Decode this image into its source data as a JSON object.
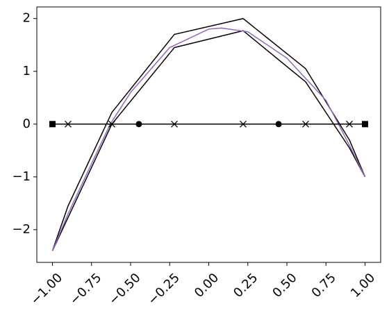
{
  "chart_data": {
    "type": "line",
    "xlim": [
      -1.1,
      1.1
    ],
    "ylim": [
      -2.62,
      2.22
    ],
    "xticks": [
      {
        "value": -1,
        "label": "−1.00"
      },
      {
        "value": -0.75,
        "label": "−0.75"
      },
      {
        "value": -0.5,
        "label": "−0.50"
      },
      {
        "value": -0.25,
        "label": "−0.25"
      },
      {
        "value": 0,
        "label": "0.00"
      },
      {
        "value": 0.25,
        "label": "0.25"
      },
      {
        "value": 0.5,
        "label": "0.50"
      },
      {
        "value": 0.75,
        "label": "0.75"
      },
      {
        "value": 1,
        "label": "1.00"
      }
    ],
    "yticks": [
      {
        "value": -2,
        "label": "−2"
      },
      {
        "value": -1,
        "label": "−1"
      },
      0,
      1,
      2
    ],
    "series": [
      {
        "color": "#000000",
        "linestyle": "solid",
        "marker": "none",
        "x": [
          -1,
          -0.9,
          -0.62,
          -0.22,
          0.22,
          0.62,
          0.9,
          1
        ],
        "values": [
          -2.4,
          -1.55,
          0.22,
          1.7,
          2.0,
          1.05,
          -0.3,
          -1
        ]
      },
      {
        "color": "#000000",
        "linestyle": "solid",
        "marker": "none",
        "x": [
          -1,
          -0.62,
          -0.22,
          0.22,
          0.62,
          0.9,
          1
        ],
        "values": [
          -2.4,
          0.0,
          1.45,
          1.77,
          0.8,
          -0.45,
          -1
        ]
      },
      {
        "color": "#9467bd",
        "linestyle": "solid",
        "marker": "none",
        "x": [
          -1,
          -0.9,
          -0.75,
          -0.63,
          -0.5,
          -0.25,
          0,
          0.08,
          0.25,
          0.5,
          0.75,
          0.83,
          0.9,
          1
        ],
        "values": [
          -2.4,
          -1.7,
          -0.75,
          0,
          0.6,
          1.45,
          1.8,
          1.82,
          1.75,
          1.25,
          0.45,
          0,
          -0.4,
          -1
        ]
      },
      {
        "color": "#000000",
        "linestyle": "solid",
        "marker": "none",
        "x": [
          -1,
          1
        ],
        "values": [
          0,
          0
        ]
      },
      {
        "color": "#000000",
        "linestyle": "none",
        "marker": "x",
        "x": [
          -0.9,
          -0.62,
          -0.22,
          0.22,
          0.62,
          0.9
        ],
        "values": [
          0,
          0,
          0,
          0,
          0,
          0
        ]
      },
      {
        "color": "#000000",
        "linestyle": "none",
        "marker": "o",
        "x": [
          -0.447,
          0.447
        ],
        "values": [
          0,
          0
        ]
      },
      {
        "color": "#000000",
        "linestyle": "none",
        "marker": "s",
        "x": [
          -1,
          1
        ],
        "values": [
          0,
          0
        ]
      }
    ]
  }
}
